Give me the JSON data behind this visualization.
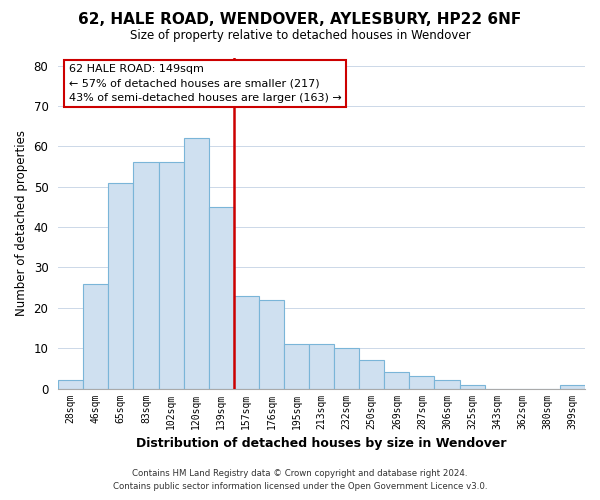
{
  "title": "62, HALE ROAD, WENDOVER, AYLESBURY, HP22 6NF",
  "subtitle": "Size of property relative to detached houses in Wendover",
  "xlabel": "Distribution of detached houses by size in Wendover",
  "ylabel": "Number of detached properties",
  "bar_labels": [
    "28sqm",
    "46sqm",
    "65sqm",
    "83sqm",
    "102sqm",
    "120sqm",
    "139sqm",
    "157sqm",
    "176sqm",
    "195sqm",
    "213sqm",
    "232sqm",
    "250sqm",
    "269sqm",
    "287sqm",
    "306sqm",
    "325sqm",
    "343sqm",
    "362sqm",
    "380sqm",
    "399sqm"
  ],
  "bar_values": [
    2,
    26,
    51,
    56,
    56,
    62,
    45,
    23,
    22,
    11,
    11,
    10,
    7,
    4,
    3,
    2,
    1,
    0,
    0,
    0,
    1
  ],
  "bar_color": "#cfe0f0",
  "bar_edge_color": "#7ab5d8",
  "highlight_line_color": "#cc0000",
  "highlight_bar_index": 6,
  "ylim": [
    0,
    82
  ],
  "yticks": [
    0,
    10,
    20,
    30,
    40,
    50,
    60,
    70,
    80
  ],
  "annotation_title": "62 HALE ROAD: 149sqm",
  "annotation_line1": "← 57% of detached houses are smaller (217)",
  "annotation_line2": "43% of semi-detached houses are larger (163) →",
  "annotation_box_color": "#ffffff",
  "annotation_box_edge_color": "#cc0000",
  "footer_line1": "Contains HM Land Registry data © Crown copyright and database right 2024.",
  "footer_line2": "Contains public sector information licensed under the Open Government Licence v3.0.",
  "background_color": "#ffffff",
  "grid_color": "#ccd8e8"
}
